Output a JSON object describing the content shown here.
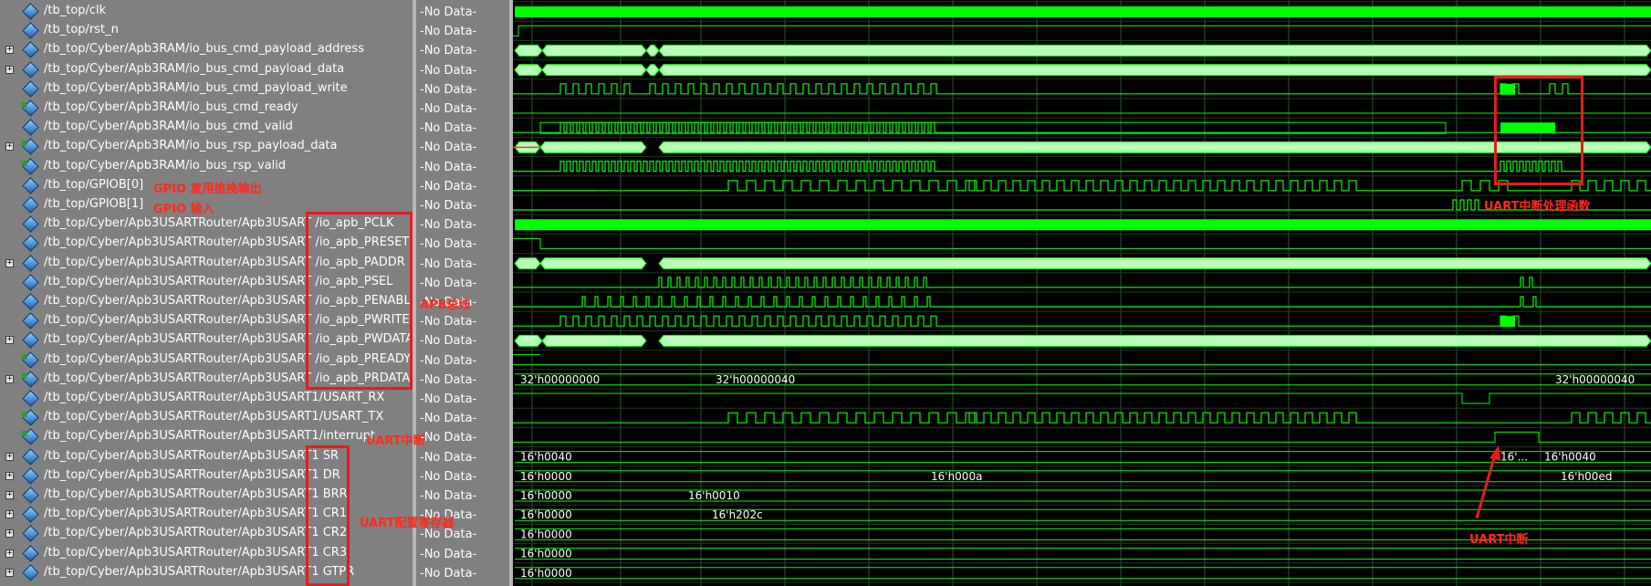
{
  "signals": [
    {
      "name": "/tb_top/clk",
      "expand": false,
      "dir": "out",
      "value": "-No Data-"
    },
    {
      "name": "/tb_top/rst_n",
      "expand": false,
      "dir": "out",
      "value": "-No Data-"
    },
    {
      "name": "/tb_top/Cyber/Apb3RAM/io_bus_cmd_payload_address",
      "expand": true,
      "dir": "out",
      "value": "-No Data-"
    },
    {
      "name": "/tb_top/Cyber/Apb3RAM/io_bus_cmd_payload_data",
      "expand": true,
      "dir": "out",
      "value": "-No Data-"
    },
    {
      "name": "/tb_top/Cyber/Apb3RAM/io_bus_cmd_payload_write",
      "expand": false,
      "dir": "out",
      "value": "-No Data-"
    },
    {
      "name": "/tb_top/Cyber/Apb3RAM/io_bus_cmd_ready",
      "expand": false,
      "dir": "in",
      "value": "-No Data-"
    },
    {
      "name": "/tb_top/Cyber/Apb3RAM/io_bus_cmd_valid",
      "expand": false,
      "dir": "out",
      "value": "-No Data-"
    },
    {
      "name": "/tb_top/Cyber/Apb3RAM/io_bus_rsp_payload_data",
      "expand": true,
      "dir": "in",
      "value": "-No Data-"
    },
    {
      "name": "/tb_top/Cyber/Apb3RAM/io_bus_rsp_valid",
      "expand": false,
      "dir": "in",
      "value": "-No Data-"
    },
    {
      "name": "/tb_top/GPIOB[0]",
      "expand": false,
      "dir": "out",
      "value": "-No Data-"
    },
    {
      "name": "/tb_top/GPIOB[1]",
      "expand": false,
      "dir": "out",
      "value": "-No Data-"
    },
    {
      "name": "/tb_top/Cyber/Apb3USARTRouter/Apb3USART /io_apb_PCLK",
      "expand": false,
      "dir": "out",
      "value": "-No Data-"
    },
    {
      "name": "/tb_top/Cyber/Apb3USARTRouter/Apb3USART /io_apb_PRESET",
      "expand": false,
      "dir": "out",
      "value": "-No Data-"
    },
    {
      "name": "/tb_top/Cyber/Apb3USARTRouter/Apb3USART /io_apb_PADDR",
      "expand": true,
      "dir": "out",
      "value": "-No Data-"
    },
    {
      "name": "/tb_top/Cyber/Apb3USARTRouter/Apb3USART /io_apb_PSEL",
      "expand": false,
      "dir": "out",
      "value": "-No Data-"
    },
    {
      "name": "/tb_top/Cyber/Apb3USARTRouter/Apb3USART /io_apb_PENABLE",
      "expand": false,
      "dir": "out",
      "value": "-No Data-"
    },
    {
      "name": "/tb_top/Cyber/Apb3USARTRouter/Apb3USART /io_apb_PWRITE",
      "expand": false,
      "dir": "out",
      "value": "-No Data-"
    },
    {
      "name": "/tb_top/Cyber/Apb3USARTRouter/Apb3USART /io_apb_PWDATA",
      "expand": true,
      "dir": "out",
      "value": "-No Data-"
    },
    {
      "name": "/tb_top/Cyber/Apb3USARTRouter/Apb3USART /io_apb_PREADY",
      "expand": false,
      "dir": "in",
      "value": "-No Data-"
    },
    {
      "name": "/tb_top/Cyber/Apb3USARTRouter/Apb3USART /io_apb_PRDATA",
      "expand": true,
      "dir": "in",
      "value": "-No Data-"
    },
    {
      "name": "/tb_top/Cyber/Apb3USARTRouter/Apb3USART1/USART_RX",
      "expand": false,
      "dir": "out",
      "value": "-No Data-"
    },
    {
      "name": "/tb_top/Cyber/Apb3USARTRouter/Apb3USART1/USART_TX",
      "expand": false,
      "dir": "in",
      "value": "-No Data-"
    },
    {
      "name": "/tb_top/Cyber/Apb3USARTRouter/Apb3USART1/interrupt",
      "expand": false,
      "dir": "in",
      "value": "-No Data-"
    },
    {
      "name": "/tb_top/Cyber/Apb3USARTRouter/Apb3USART1 SR",
      "expand": true,
      "dir": "out",
      "value": "-No Data-"
    },
    {
      "name": "/tb_top/Cyber/Apb3USARTRouter/Apb3USART1 DR",
      "expand": true,
      "dir": "out",
      "value": "-No Data-"
    },
    {
      "name": "/tb_top/Cyber/Apb3USARTRouter/Apb3USART1 BRR",
      "expand": true,
      "dir": "out",
      "value": "-No Data-"
    },
    {
      "name": "/tb_top/Cyber/Apb3USARTRouter/Apb3USART1 CR1",
      "expand": true,
      "dir": "out",
      "value": "-No Data-"
    },
    {
      "name": "/tb_top/Cyber/Apb3USARTRouter/Apb3USART1 CR2",
      "expand": true,
      "dir": "out",
      "value": "-No Data-"
    },
    {
      "name": "/tb_top/Cyber/Apb3USARTRouter/Apb3USART1 CR3",
      "expand": true,
      "dir": "out",
      "value": "-No Data-"
    },
    {
      "name": "/tb_top/Cyber/Apb3USARTRouter/Apb3USART1 GTPR",
      "expand": true,
      "dir": "out",
      "value": "-No Data-"
    }
  ],
  "annotations": {
    "gpio0": "GPIO 复用推挽输出",
    "gpio1": "GPIO 输入",
    "apb_bus": "APB总线",
    "uart_int_label": "UART中断",
    "uart_regs": "UART配置寄存器",
    "uart_handler": "UART中断处理函数",
    "uart_int_arrow": "UART中断"
  },
  "wave_labels": {
    "prdata_a": "32'h00000000",
    "prdata_b": "32'h00000040",
    "prdata_c": "32'h00000040",
    "sr_a": "16'h0040",
    "sr_b": "16'...",
    "sr_c": "16'h0040",
    "dr_a": "16'h0000",
    "dr_b": "16'h000a",
    "dr_c": "16'h00ed",
    "brr_a": "16'h0000",
    "brr_b": "16'h0010",
    "cr1_a": "16'h0000",
    "cr1_b": "16'h202c",
    "cr2_a": "16'h0000",
    "cr3_a": "16'h0000",
    "gtpr_a": "16'h0000"
  },
  "colors": {
    "wave_green": "#00ff00",
    "bus_fill": "#b8ffb8",
    "annotation_red": "#e61c1c",
    "panel_gray": "#808080"
  }
}
